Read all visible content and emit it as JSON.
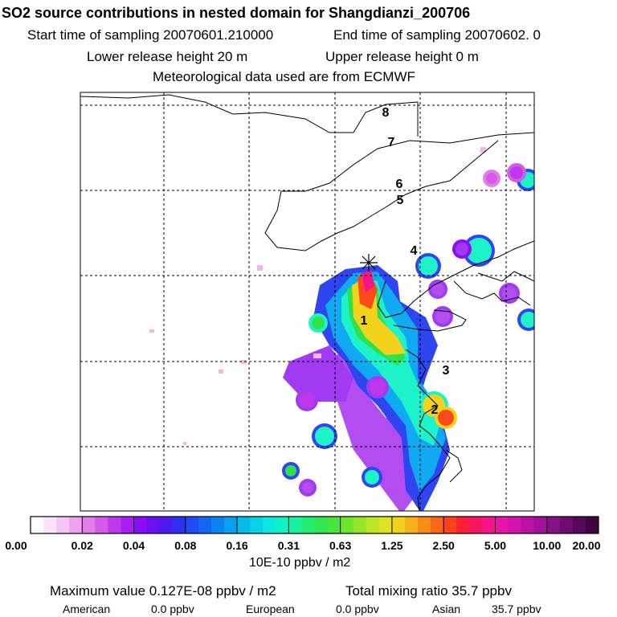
{
  "header": {
    "title": "SO2 source contributions in nested domain for Shangdianzi_200706",
    "start_label": "Start time of sampling 20070601.210000",
    "end_label": "End time of sampling 20070602.     0",
    "lower_label": "Lower release height   20 m",
    "upper_label": "Upper release height    0 m",
    "met_label": "Meteorological data used are from ECMWF"
  },
  "chart_data": {
    "type": "heatmap",
    "title": "SO2 source contributions in nested domain for Shangdianzi_200706",
    "grid": true,
    "colorbar": {
      "ticks": [
        "0.00",
        "0.02",
        "0.04",
        "0.08",
        "0.16",
        "0.31",
        "0.63",
        "1.25",
        "2.50",
        "5.00",
        "10.00",
        "20.00"
      ],
      "unit_label": "10E-10 ppbv / m2",
      "colors": [
        "#ffffff",
        "#fbe4fb",
        "#f5c6f5",
        "#eea2ef",
        "#e37ee9",
        "#d35be8",
        "#bf38ec",
        "#a91ff0",
        "#8c0df5",
        "#6a10f3",
        "#4a1cf2",
        "#3030f5",
        "#1f4af6",
        "#1565f4",
        "#0a82f0",
        "#079fee",
        "#05b9ea",
        "#06d3e6",
        "#0be8df",
        "#10f2c5",
        "#18f29e",
        "#22ee74",
        "#30e94f",
        "#48e63a",
        "#6de431",
        "#95e62a",
        "#bce625",
        "#dde420",
        "#f2d21b",
        "#f7b019",
        "#f98c18",
        "#fb6619",
        "#fd411d",
        "#fc1f37",
        "#f91661",
        "#f4158a",
        "#e815a8",
        "#d314ad",
        "#ba12a6",
        "#a1119a",
        "#881088",
        "#6d0d70",
        "#55095a",
        "#3f0540"
      ]
    },
    "site_marker": "receptor-star",
    "region_labels": [
      "1",
      "2",
      "3",
      "4",
      "5",
      "6",
      "7",
      "8"
    ],
    "summary": {
      "maximum": "0.127E-08",
      "maximum_unit": "ppbv / m2",
      "total_mixing_ratio": "35.7",
      "total_unit": "ppbv",
      "regions": [
        {
          "name": "American",
          "value": "0.0 ppbv"
        },
        {
          "name": "European",
          "value": "0.0 ppbv"
        },
        {
          "name": "Asian",
          "value": "35.7 ppbv"
        }
      ]
    }
  },
  "footer": {
    "max_label": "Maximum value  0.127E-08 ppbv / m2",
    "total_label": "Total mixing ratio      35.7 ppbv",
    "american": "American",
    "american_val": "0.0 ppbv",
    "european": "European",
    "european_val": "0.0 ppbv",
    "asian": "Asian",
    "asian_val": "35.7 ppbv"
  }
}
